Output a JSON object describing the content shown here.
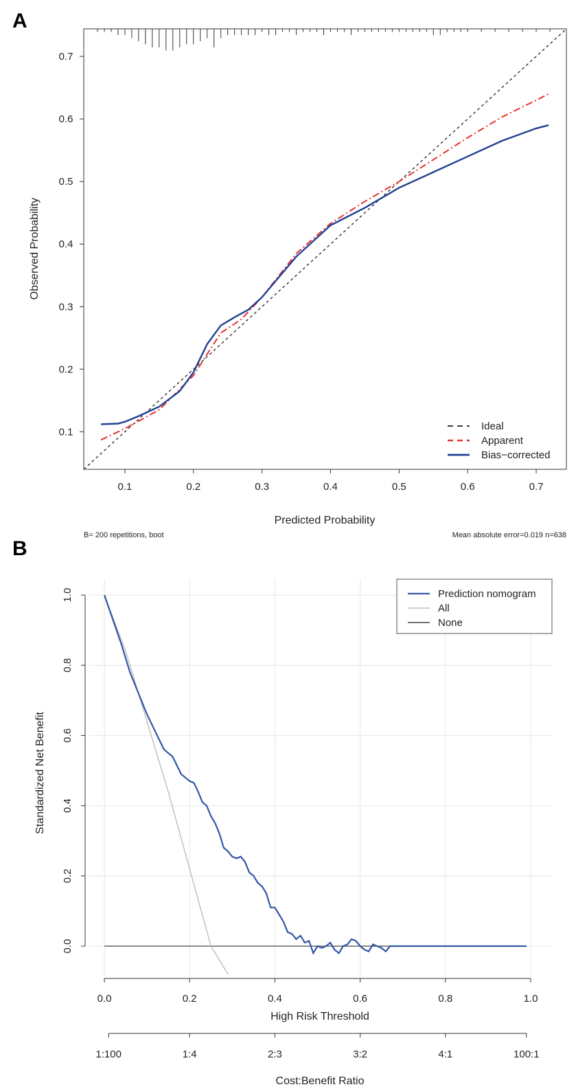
{
  "figure": {
    "panel_a_label": "A",
    "panel_b_label": "B"
  },
  "chart_data": [
    {
      "type": "line",
      "panel": "A",
      "title": "",
      "xlabel": "Predicted Probability",
      "ylabel": "Observed Probability",
      "xlim": [
        0.04,
        0.744
      ],
      "ylim": [
        0.04,
        0.744
      ],
      "x_ticks": [
        0.1,
        0.2,
        0.3,
        0.4,
        0.5,
        0.6,
        0.7
      ],
      "y_ticks": [
        0.1,
        0.2,
        0.3,
        0.4,
        0.5,
        0.6,
        0.7
      ],
      "legend_position": "bottom-right",
      "series": [
        {
          "name": "Ideal",
          "color": "#222222",
          "style": "dashed",
          "x": [
            0.04,
            0.744
          ],
          "y": [
            0.04,
            0.744
          ]
        },
        {
          "name": "Apparent",
          "color": "#e8312f",
          "style": "dashdot",
          "x": [
            0.065,
            0.1,
            0.15,
            0.2,
            0.24,
            0.27,
            0.3,
            0.35,
            0.4,
            0.45,
            0.5,
            0.55,
            0.6,
            0.65,
            0.7,
            0.718
          ],
          "y": [
            0.087,
            0.105,
            0.135,
            0.19,
            0.258,
            0.28,
            0.315,
            0.385,
            0.433,
            0.468,
            0.5,
            0.535,
            0.57,
            0.603,
            0.63,
            0.64
          ]
        },
        {
          "name": "Bias−corrected",
          "color": "#1f3f8f",
          "style": "solid",
          "x": [
            0.065,
            0.09,
            0.1,
            0.12,
            0.15,
            0.18,
            0.2,
            0.22,
            0.24,
            0.26,
            0.28,
            0.3,
            0.35,
            0.4,
            0.45,
            0.5,
            0.55,
            0.6,
            0.65,
            0.7,
            0.718
          ],
          "y": [
            0.112,
            0.113,
            0.116,
            0.125,
            0.14,
            0.165,
            0.195,
            0.24,
            0.27,
            0.283,
            0.295,
            0.315,
            0.38,
            0.43,
            0.458,
            0.49,
            0.515,
            0.54,
            0.565,
            0.585,
            0.59
          ]
        }
      ],
      "rug": {
        "x": [
          0.06,
          0.07,
          0.08,
          0.09,
          0.1,
          0.11,
          0.12,
          0.13,
          0.14,
          0.15,
          0.16,
          0.17,
          0.18,
          0.19,
          0.2,
          0.21,
          0.22,
          0.23,
          0.24,
          0.25,
          0.26,
          0.27,
          0.28,
          0.29,
          0.3,
          0.31,
          0.32,
          0.33,
          0.34,
          0.35,
          0.36,
          0.37,
          0.38,
          0.39,
          0.4,
          0.41,
          0.42,
          0.43,
          0.44,
          0.45,
          0.46,
          0.47,
          0.48,
          0.49,
          0.5,
          0.51,
          0.52,
          0.53,
          0.54,
          0.55,
          0.56,
          0.57,
          0.58,
          0.59,
          0.6,
          0.62,
          0.64,
          0.66,
          0.68,
          0.7,
          0.72
        ],
        "frequency": [
          1,
          1,
          1,
          2,
          2,
          3,
          4,
          5,
          6,
          6,
          7,
          7,
          6,
          5,
          5,
          4,
          3,
          6,
          3,
          2,
          2,
          2,
          2,
          2,
          1,
          2,
          2,
          1,
          1,
          2,
          1,
          1,
          1,
          2,
          1,
          1,
          1,
          2,
          1,
          1,
          1,
          1,
          1,
          1,
          1,
          1,
          1,
          1,
          1,
          2,
          2,
          1,
          1,
          1,
          1,
          1,
          1,
          1,
          1,
          1,
          1
        ]
      },
      "annotations": {
        "left": "B= 200 repetitions, boot",
        "right": "Mean absolute error=0.019 n=638"
      }
    },
    {
      "type": "line",
      "panel": "B",
      "title": "",
      "xlabel": "High Risk Threshold",
      "ylabel": "Standardized Net Benefit",
      "xlim": [
        -0.04,
        1.04
      ],
      "ylim": [
        -0.08,
        1.04
      ],
      "x_ticks": [
        0.0,
        0.2,
        0.4,
        0.6,
        0.8,
        1.0
      ],
      "x_tick_labels": [
        "0.0",
        "0.2",
        "0.4",
        "0.6",
        "0.8",
        "1.0"
      ],
      "y_ticks": [
        0.0,
        0.2,
        0.4,
        0.6,
        0.8,
        1.0
      ],
      "y_tick_labels": [
        "0.0",
        "0.2",
        "0.4",
        "0.6",
        "0.8",
        "1.0"
      ],
      "grid": true,
      "legend_position": "top-right",
      "second_axis": {
        "label": "Cost:Benefit Ratio",
        "tick_labels": [
          "1:100",
          "1:4",
          "2:3",
          "3:2",
          "4:1",
          "100:1"
        ],
        "tick_positions": [
          0.01,
          0.2,
          0.4,
          0.6,
          0.8,
          0.99
        ]
      },
      "series": [
        {
          "name": "Prediction nomogram",
          "color": "#2f56a6",
          "x": [
            0.0,
            0.02,
            0.04,
            0.06,
            0.08,
            0.1,
            0.12,
            0.14,
            0.16,
            0.18,
            0.19,
            0.2,
            0.21,
            0.22,
            0.23,
            0.24,
            0.25,
            0.26,
            0.27,
            0.28,
            0.29,
            0.3,
            0.31,
            0.32,
            0.33,
            0.34,
            0.35,
            0.36,
            0.37,
            0.38,
            0.39,
            0.4,
            0.41,
            0.42,
            0.43,
            0.44,
            0.45,
            0.46,
            0.47,
            0.48,
            0.49,
            0.5,
            0.51,
            0.52,
            0.53,
            0.54,
            0.55,
            0.56,
            0.57,
            0.58,
            0.59,
            0.6,
            0.61,
            0.62,
            0.63,
            0.64,
            0.65,
            0.66,
            0.67,
            0.68,
            0.69,
            0.7,
            0.71,
            0.72,
            0.73,
            0.74,
            0.75,
            0.76,
            0.77,
            0.78,
            0.8,
            0.85,
            0.9,
            0.95,
            0.99
          ],
          "y": [
            1.0,
            0.93,
            0.86,
            0.78,
            0.72,
            0.66,
            0.61,
            0.56,
            0.54,
            0.49,
            0.48,
            0.47,
            0.465,
            0.44,
            0.41,
            0.4,
            0.37,
            0.35,
            0.32,
            0.28,
            0.27,
            0.255,
            0.25,
            0.255,
            0.24,
            0.21,
            0.2,
            0.18,
            0.17,
            0.15,
            0.11,
            0.11,
            0.09,
            0.07,
            0.04,
            0.035,
            0.02,
            0.03,
            0.01,
            0.015,
            -0.02,
            0.0,
            -0.005,
            0.0,
            0.01,
            -0.01,
            -0.02,
            0.0,
            0.005,
            0.02,
            0.015,
            0.0,
            -0.01,
            -0.015,
            0.005,
            0.0,
            -0.005,
            -0.015,
            0.0,
            0.0,
            0.0,
            0.0,
            0.0,
            0.0,
            0.0,
            0.0,
            0.0,
            0.0,
            0.0,
            0.0,
            0.0,
            0.0,
            0.0,
            0.0,
            0.0
          ]
        },
        {
          "name": "All",
          "color": "#bdbdbd",
          "x": [
            0.0,
            0.05,
            0.1,
            0.15,
            0.2,
            0.25,
            0.29
          ],
          "y": [
            1.0,
            0.84,
            0.64,
            0.44,
            0.22,
            0.0,
            -0.08
          ]
        },
        {
          "name": "None",
          "color": "#444444",
          "x": [
            0.0,
            0.99
          ],
          "y": [
            0.0,
            0.0
          ]
        }
      ]
    }
  ]
}
